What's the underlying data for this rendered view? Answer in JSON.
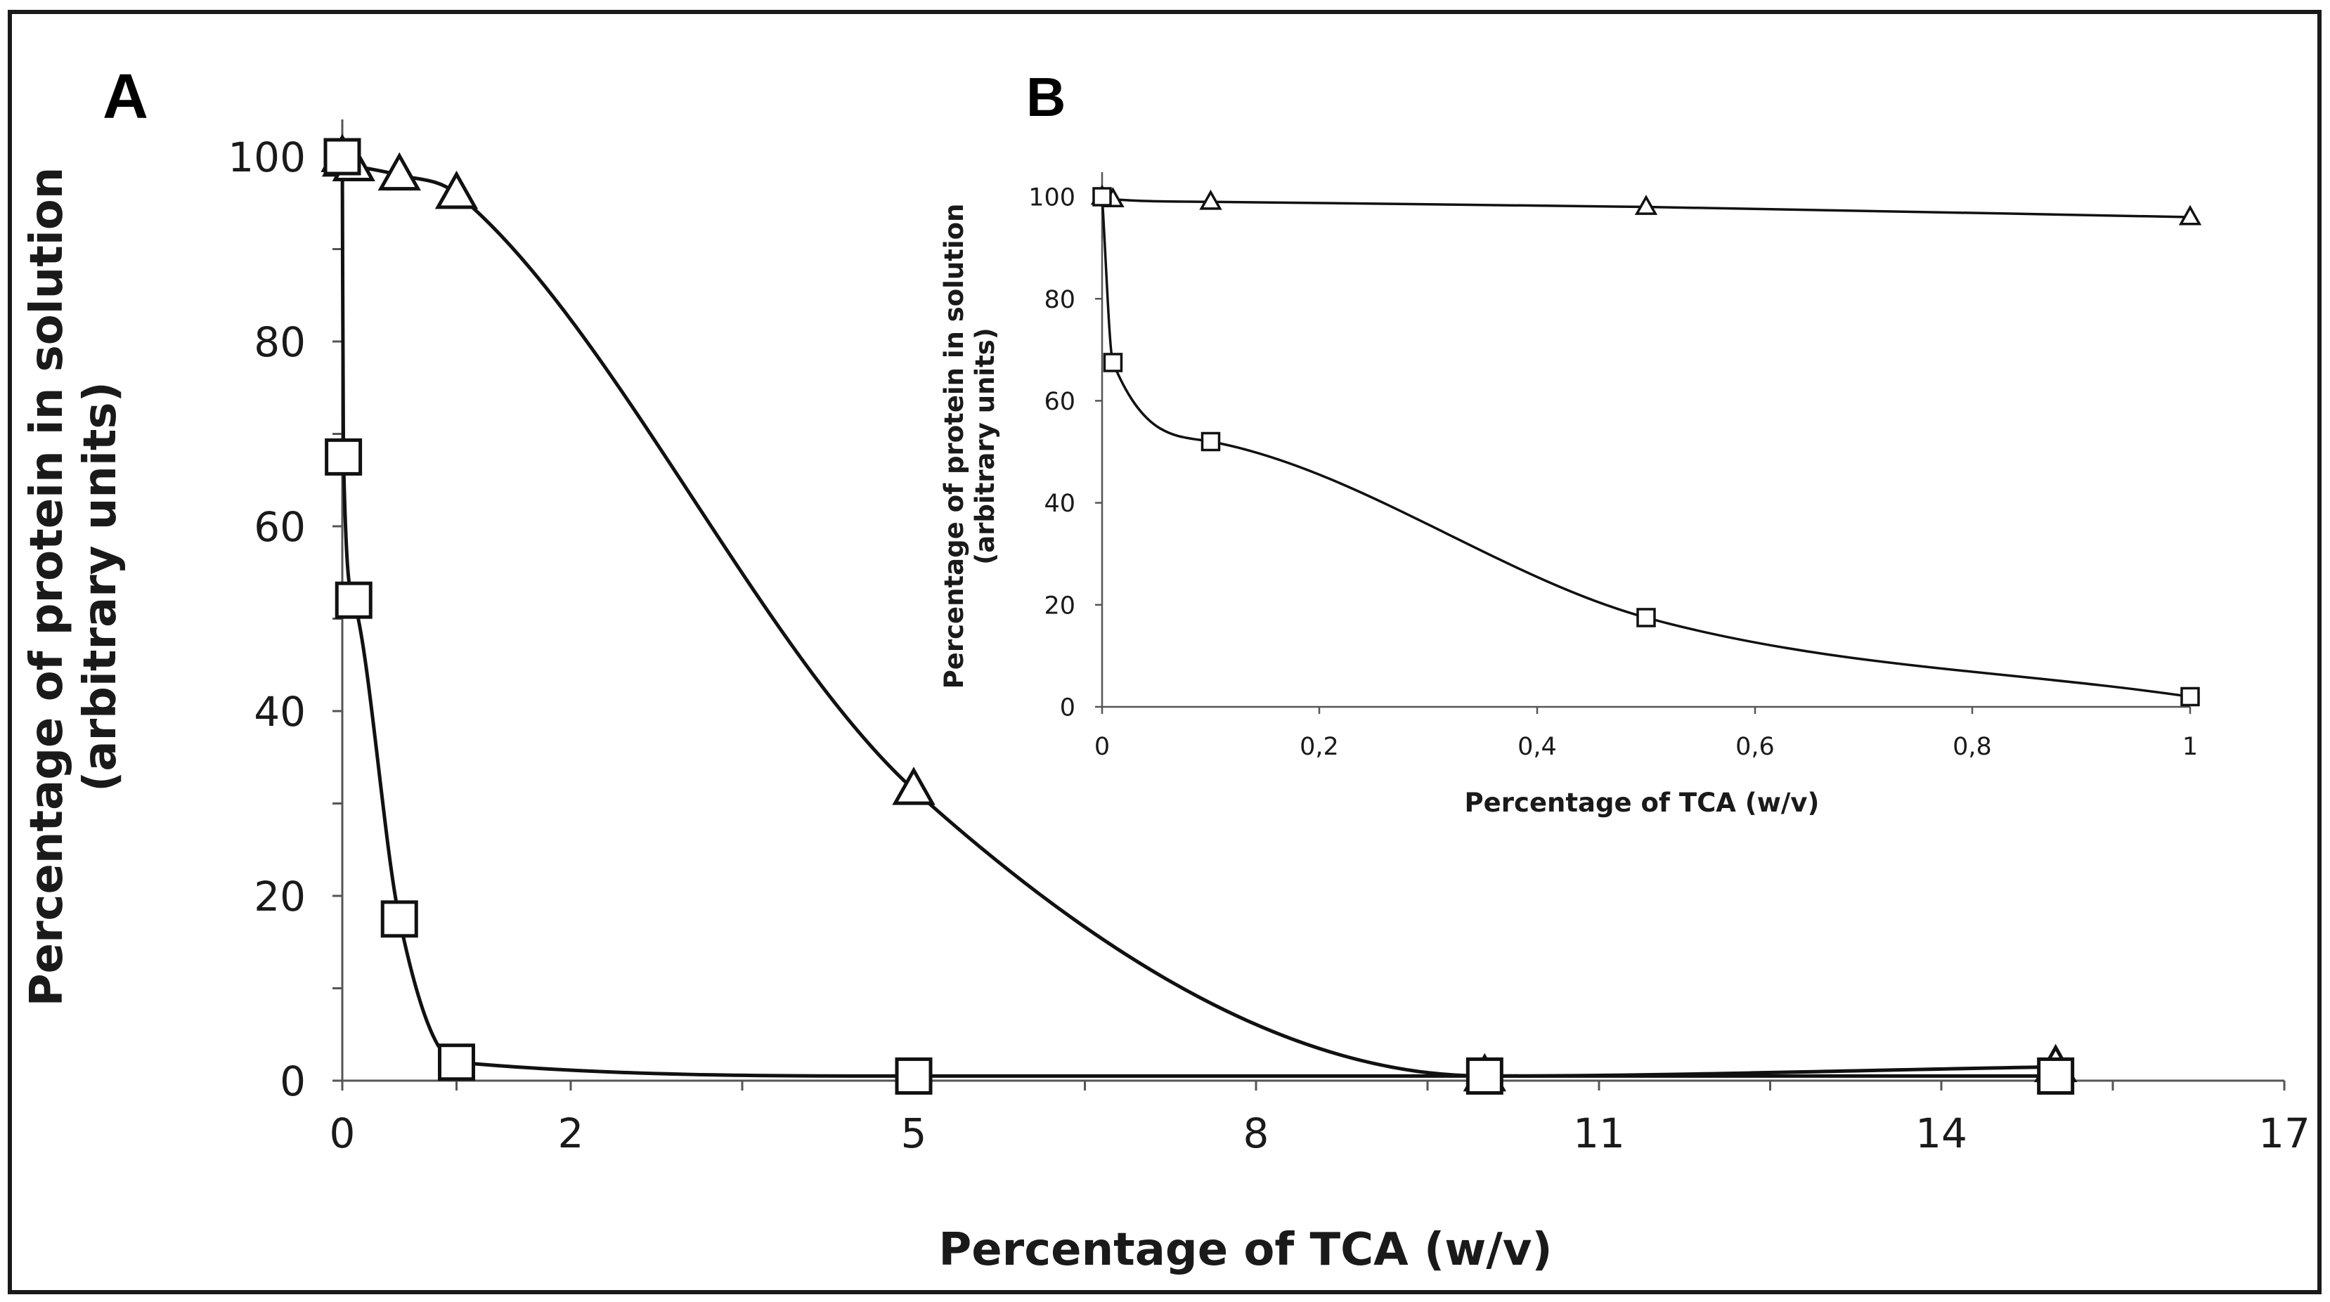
{
  "panel_a_label": "A",
  "panel_b_label": "B",
  "chart_data": [
    {
      "type": "line",
      "panel": "A",
      "xlabel": "Percentage of TCA (w/v)",
      "ylabel_line1": "Percentage of protein in solution",
      "ylabel_line2": "(arbitrary units)",
      "xlim": [
        0,
        17
      ],
      "ylim": [
        0,
        100
      ],
      "xticks": [
        0,
        2,
        5,
        8,
        11,
        14,
        17
      ],
      "xtick_labels": [
        "0",
        "2",
        "5",
        "8",
        "11",
        "14",
        "17"
      ],
      "yticks": [
        0,
        20,
        40,
        60,
        80,
        100
      ],
      "ytick_labels": [
        "0",
        "20",
        "40",
        "60",
        "80",
        "100"
      ],
      "series": [
        {
          "name": "triangle",
          "marker": "triangle",
          "x": [
            0,
            0.01,
            0.1,
            0.5,
            1,
            5,
            10,
            15
          ],
          "y": [
            100,
            99.5,
            99,
            98,
            96,
            31.5,
            0.5,
            1.5
          ]
        },
        {
          "name": "square",
          "marker": "square",
          "x": [
            0,
            0.01,
            0.1,
            0.5,
            1,
            5,
            10,
            15
          ],
          "y": [
            100,
            67.5,
            52,
            17.5,
            2,
            0.5,
            0.5,
            0.5
          ]
        }
      ]
    },
    {
      "type": "line",
      "panel": "B",
      "xlabel": "Percentage of TCA (w/v)",
      "ylabel_line1": "Percentage of protein in solution",
      "ylabel_line2": "(arbitrary units)",
      "xlim": [
        0,
        1
      ],
      "ylim": [
        0,
        100
      ],
      "xticks": [
        0,
        0.2,
        0.4,
        0.6,
        0.8,
        1
      ],
      "xtick_labels": [
        "0",
        "0,2",
        "0,4",
        "0,6",
        "0,8",
        "1"
      ],
      "yticks": [
        0,
        20,
        40,
        60,
        80,
        100
      ],
      "ytick_labels": [
        "0",
        "20",
        "40",
        "60",
        "80",
        "100"
      ],
      "series": [
        {
          "name": "triangle",
          "marker": "triangle",
          "x": [
            0,
            0.01,
            0.1,
            0.5,
            1
          ],
          "y": [
            100,
            99.5,
            99,
            98,
            96
          ]
        },
        {
          "name": "square",
          "marker": "square",
          "x": [
            0,
            0.01,
            0.1,
            0.5,
            1
          ],
          "y": [
            100,
            67.5,
            52,
            17.5,
            2
          ]
        }
      ]
    }
  ]
}
